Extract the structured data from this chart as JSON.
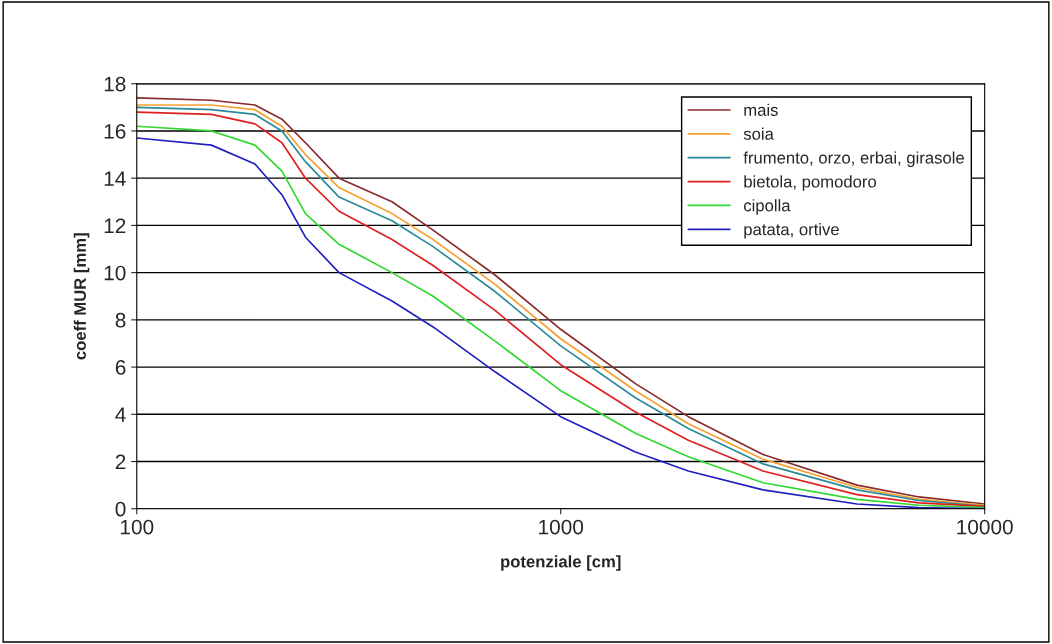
{
  "chart_data": {
    "type": "line",
    "xlabel": "potenziale [cm]",
    "ylabel": "coeff MUR [mm]",
    "x": [
      100,
      150,
      190,
      220,
      250,
      300,
      400,
      500,
      700,
      1000,
      1500,
      2000,
      3000,
      5000,
      7000,
      10000
    ],
    "series": [
      {
        "name": "mais",
        "color": "#8b2a2a",
        "values": [
          17.4,
          17.3,
          17.1,
          16.5,
          15.5,
          14.0,
          13.0,
          11.8,
          9.9,
          7.6,
          5.3,
          3.9,
          2.3,
          1.0,
          0.5,
          0.2
        ]
      },
      {
        "name": "soia",
        "color": "#f5a030",
        "values": [
          17.1,
          17.1,
          16.9,
          16.2,
          15.0,
          13.6,
          12.5,
          11.4,
          9.5,
          7.2,
          5.0,
          3.6,
          2.1,
          0.9,
          0.4,
          0.15
        ]
      },
      {
        "name": "frumento, orzo, erbai, girasole",
        "color": "#2a8a9a",
        "values": [
          17.0,
          16.9,
          16.7,
          16.0,
          14.7,
          13.2,
          12.2,
          11.1,
          9.2,
          6.9,
          4.7,
          3.4,
          1.9,
          0.8,
          0.35,
          0.1
        ]
      },
      {
        "name": "bietola, pomodoro",
        "color": "#e02020",
        "values": [
          16.8,
          16.7,
          16.3,
          15.5,
          14.0,
          12.6,
          11.4,
          10.3,
          8.4,
          6.1,
          4.1,
          2.9,
          1.6,
          0.6,
          0.25,
          0.1
        ]
      },
      {
        "name": "cipolla",
        "color": "#30d830",
        "values": [
          16.2,
          16.0,
          15.4,
          14.3,
          12.5,
          11.2,
          10.0,
          9.0,
          7.1,
          5.0,
          3.2,
          2.2,
          1.1,
          0.4,
          0.15,
          0.05
        ]
      },
      {
        "name": "patata, ortive",
        "color": "#2020c0",
        "values": [
          15.7,
          15.4,
          14.6,
          13.3,
          11.5,
          10.0,
          8.8,
          7.7,
          5.8,
          3.9,
          2.4,
          1.6,
          0.8,
          0.2,
          0.05,
          0.0
        ]
      }
    ],
    "log": "x",
    "xlim": [
      100,
      10000
    ],
    "xticks": [
      100,
      1000,
      10000
    ],
    "ylim": [
      0,
      18
    ],
    "yticks": [
      0,
      2,
      4,
      6,
      8,
      10,
      12,
      14,
      16,
      18
    ],
    "grid": "y",
    "legend": "top right",
    "marker": "none",
    "line_style": "solid"
  }
}
